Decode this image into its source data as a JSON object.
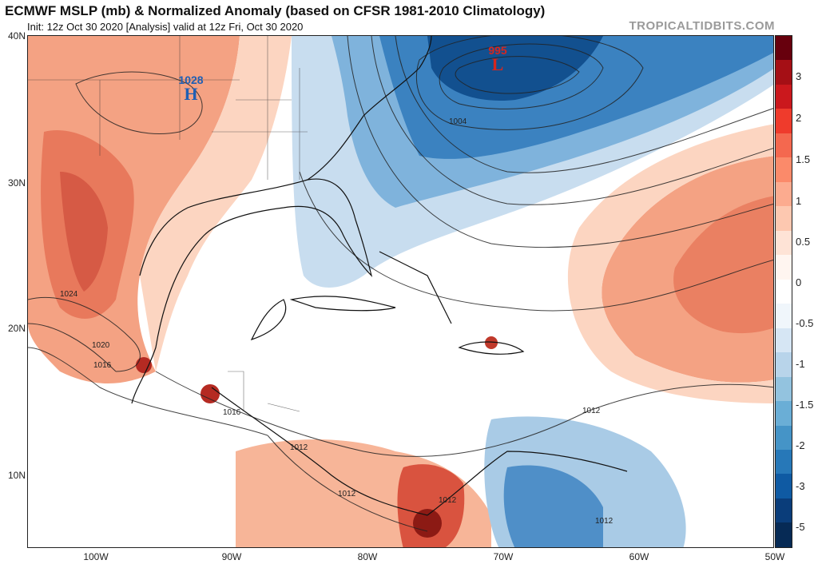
{
  "title": "ECMWF MSLP (mb) & Normalized Anomaly (based on CFSR 1981-2010 Climatology)",
  "subtitle": "Init: 12z Oct 30 2020   [Analysis]   valid at 12z Fri, Oct 30 2020",
  "credit": "TROPICALTIDBITS.COM",
  "lat_labels": [
    "40N",
    "30N",
    "20N",
    "10N"
  ],
  "lon_labels": [
    "100W",
    "90W",
    "80W",
    "70W",
    "60W",
    "50W"
  ],
  "colorbar": {
    "labels": [
      "3",
      "2",
      "1.5",
      "1",
      "0.5",
      "0",
      "-0.5",
      "-1",
      "-1.5",
      "-2",
      "-3",
      "-5"
    ],
    "colors_top_to_bottom": [
      "#67000d",
      "#a50f15",
      "#cb181d",
      "#ef3b2c",
      "#f4684f",
      "#fb8a6a",
      "#fcab8f",
      "#fdc8b0",
      "#fee3d6",
      "#fff5f0",
      "#ffffff",
      "#f0f6fb",
      "#d6e6f4",
      "#b8d4ea",
      "#93c3df",
      "#6aaed6",
      "#4594c7",
      "#2778b8",
      "#0f5aa3",
      "#0a3d7a",
      "#062a55"
    ]
  },
  "pressure_centers": {
    "high": {
      "value": "1028",
      "letter": "H",
      "color": "#1f5fb4"
    },
    "low": {
      "value": "995",
      "letter": "L",
      "color": "#d7261e"
    }
  },
  "isobar_labels": [
    "1004",
    "1012",
    "1012",
    "1012",
    "1012",
    "1012",
    "1016",
    "1016",
    "1020",
    "1024"
  ]
}
